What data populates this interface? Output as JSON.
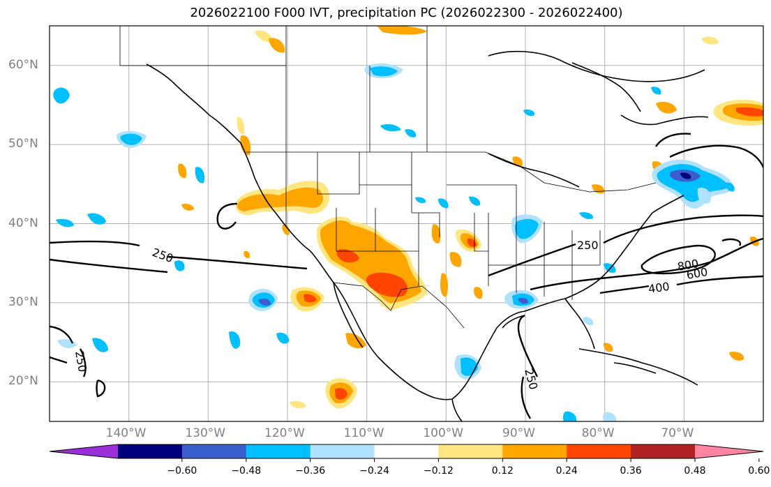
{
  "title": "2026022100 F000 IVT, precipitation PC (2026022300 - 2026022400)",
  "map": {
    "projection": "PlateCarree",
    "lon_range": [
      -150,
      -60
    ],
    "lat_range": [
      15,
      65
    ],
    "lat_ticks": [
      {
        "value": 60,
        "label": "60°N"
      },
      {
        "value": 50,
        "label": "50°N"
      },
      {
        "value": 40,
        "label": "40°N"
      },
      {
        "value": 30,
        "label": "30°N"
      },
      {
        "value": 20,
        "label": "20°N"
      }
    ],
    "lon_ticks": [
      {
        "value": -140,
        "label": "140°W"
      },
      {
        "value": -130,
        "label": "130°W"
      },
      {
        "value": -120,
        "label": "120°W"
      },
      {
        "value": -110,
        "label": "110°W"
      },
      {
        "value": -100,
        "label": "100°W"
      },
      {
        "value": -90,
        "label": "90°W"
      },
      {
        "value": -80,
        "label": "80°W"
      },
      {
        "value": -70,
        "label": "70°W"
      }
    ],
    "ivt_contour_labels": [
      "250",
      "250",
      "250",
      "250",
      "400",
      "600",
      "800"
    ]
  },
  "colorbar": {
    "ticks": [
      "−0.60",
      "−0.48",
      "−0.36",
      "−0.24",
      "−0.12",
      "0.12",
      "0.24",
      "0.36",
      "0.48",
      "0.60"
    ],
    "colors": [
      "#9b30d8",
      "#00007f",
      "#3a5fcd",
      "#00bfff",
      "#b0e2ff",
      "#ffffff",
      "#ffe680",
      "#ffa500",
      "#ff4500",
      "#b22222",
      "#ff85a2"
    ]
  }
}
